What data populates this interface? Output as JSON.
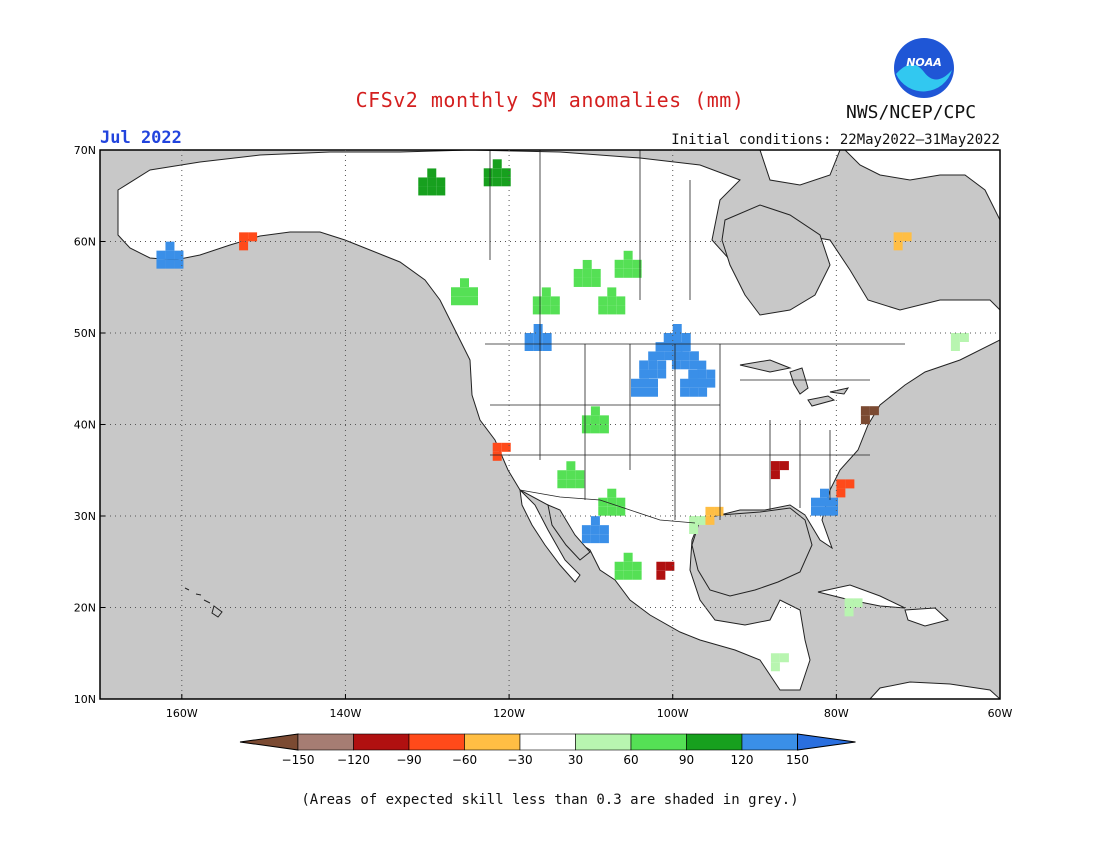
{
  "title": "CFSv2 monthly SM anomalies (mm)",
  "org": "NWS/NCEP/CPC",
  "logo_text": "NOAA",
  "month": "Jul 2022",
  "initial_conditions": "Initial conditions: 22May2022–31May2022",
  "footnote": "(Areas of expected skill less than 0.3 are shaded in grey.)",
  "colors": {
    "title": "#d41f1f",
    "month": "#2244dd",
    "ocean": "#c8c8c8",
    "land_base": "#ffffff",
    "grey_skill": "#c8c8c8"
  },
  "map": {
    "lat_labels": [
      "70N",
      "60N",
      "50N",
      "40N",
      "30N",
      "20N",
      "10N"
    ],
    "lon_labels": [
      "160W",
      "140W",
      "120W",
      "100W",
      "80W",
      "60W"
    ],
    "lat_range": [
      10,
      70
    ],
    "lon_range": [
      -170,
      -60
    ]
  },
  "legend": {
    "labels": [
      "−150",
      "−120",
      "−90",
      "−60",
      "−30",
      "30",
      "60",
      "90",
      "120",
      "150"
    ],
    "colors": [
      "#7b4a32",
      "#a67d73",
      "#b01010",
      "#ff4a1a",
      "#ffbe44",
      "#ffffff",
      "#b8f5b0",
      "#55e055",
      "#17a01e",
      "#3a8fe8",
      "#2a6fdf"
    ]
  },
  "anomaly_patches": [
    {
      "lon": -101,
      "lat": 49,
      "class": "blue"
    },
    {
      "lon": -99,
      "lat": 48,
      "class": "blue"
    },
    {
      "lon": -103,
      "lat": 47,
      "class": "blue"
    },
    {
      "lon": -100,
      "lat": 50,
      "class": "blue"
    },
    {
      "lon": -97,
      "lat": 46,
      "class": "blue"
    },
    {
      "lon": -104,
      "lat": 45,
      "class": "blue"
    },
    {
      "lon": -98,
      "lat": 45,
      "class": "blue"
    },
    {
      "lon": -117,
      "lat": 50,
      "class": "blue"
    },
    {
      "lon": -82,
      "lat": 32,
      "class": "blue"
    },
    {
      "lon": -110,
      "lat": 29,
      "class": "blue"
    },
    {
      "lon": -162,
      "lat": 59,
      "class": "blue"
    },
    {
      "lon": -126,
      "lat": 55,
      "class": "green"
    },
    {
      "lon": -116,
      "lat": 54,
      "class": "green"
    },
    {
      "lon": -108,
      "lat": 54,
      "class": "green"
    },
    {
      "lon": -111,
      "lat": 57,
      "class": "green"
    },
    {
      "lon": -106,
      "lat": 58,
      "class": "green"
    },
    {
      "lon": -130,
      "lat": 67,
      "class": "darkgreen"
    },
    {
      "lon": -122,
      "lat": 68,
      "class": "darkgreen"
    },
    {
      "lon": -110,
      "lat": 41,
      "class": "green"
    },
    {
      "lon": -113,
      "lat": 35,
      "class": "green"
    },
    {
      "lon": -108,
      "lat": 32,
      "class": "green"
    },
    {
      "lon": -106,
      "lat": 25,
      "class": "green"
    },
    {
      "lon": -98,
      "lat": 30,
      "class": "lightgreen"
    },
    {
      "lon": -88,
      "lat": 15,
      "class": "lightgreen"
    },
    {
      "lon": -79,
      "lat": 21,
      "class": "lightgreen"
    },
    {
      "lon": -66,
      "lat": 50,
      "class": "lightgreen"
    },
    {
      "lon": -73,
      "lat": 61,
      "class": "orange"
    },
    {
      "lon": -96,
      "lat": 31,
      "class": "orange"
    },
    {
      "lon": -102,
      "lat": 25,
      "class": "darkred"
    },
    {
      "lon": -88,
      "lat": 36,
      "class": "darkred"
    },
    {
      "lon": -80,
      "lat": 34,
      "class": "red"
    },
    {
      "lon": -122,
      "lat": 38,
      "class": "red"
    },
    {
      "lon": -153,
      "lat": 61,
      "class": "red"
    },
    {
      "lon": -77,
      "lat": 42,
      "class": "brown"
    }
  ]
}
